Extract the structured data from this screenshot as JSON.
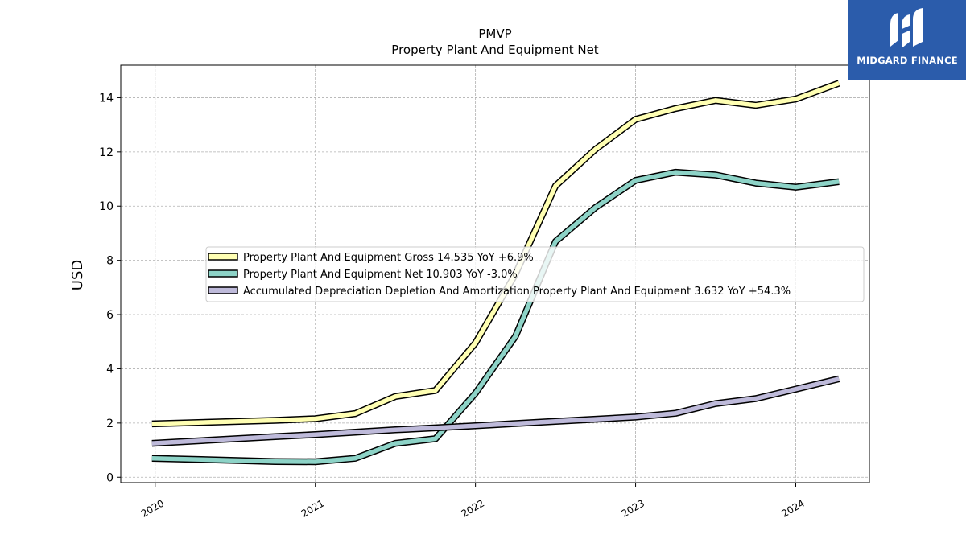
{
  "chart_data": {
    "type": "line",
    "title": "PMVP",
    "subtitle": "Property Plant And Equipment Net",
    "ylabel": "USD",
    "xlabel": "",
    "ylim": [
      -0.2,
      15.2
    ],
    "xlim": [
      2019.785,
      2024.46
    ],
    "grid": true,
    "legend_position": "center-left",
    "x_ticks": [
      2020,
      2021,
      2022,
      2023,
      2024
    ],
    "x_tick_labels": [
      "2020",
      "2021",
      "2022",
      "2023",
      "2024"
    ],
    "y_ticks": [
      0,
      2,
      4,
      6,
      8,
      10,
      12,
      14
    ],
    "y_tick_labels": [
      "0",
      "2",
      "4",
      "6",
      "8",
      "10",
      "12",
      "14"
    ],
    "x": [
      2019.98,
      2020.75,
      2021.0,
      2021.25,
      2021.5,
      2021.75,
      2022.0,
      2022.25,
      2022.5,
      2022.75,
      2023.0,
      2023.25,
      2023.5,
      2023.75,
      2024.0,
      2024.27
    ],
    "series": [
      {
        "name": "Property Plant And Equipment Gross",
        "legend_label": "Property Plant And Equipment Gross  14.535 YoY +6.9%",
        "color": "#ffffb3",
        "values": [
          1.97,
          2.1,
          2.16,
          2.35,
          2.98,
          3.2,
          4.95,
          7.5,
          10.75,
          12.1,
          13.2,
          13.6,
          13.9,
          13.72,
          13.95,
          14.535
        ]
      },
      {
        "name": "Property Plant And Equipment Net",
        "legend_label": "Property Plant And Equipment Net  10.903 YoY -3.0%",
        "color": "#8dd3c7",
        "values": [
          0.7,
          0.58,
          0.57,
          0.7,
          1.25,
          1.42,
          3.1,
          5.2,
          8.7,
          9.95,
          10.95,
          11.25,
          11.15,
          10.85,
          10.7,
          10.903
        ]
      },
      {
        "name": "Accumulated Depreciation Depletion And Amortization Property Plant And Equipment",
        "legend_label": "Accumulated Depreciation Depletion And Amortization Property Plant And Equipment  3.632 YoY +54.3%",
        "color": "#bebada",
        "values": [
          1.25,
          1.5,
          1.57,
          1.66,
          1.75,
          1.82,
          1.9,
          1.98,
          2.06,
          2.14,
          2.22,
          2.36,
          2.72,
          2.9,
          3.25,
          3.632
        ]
      }
    ]
  },
  "logo": {
    "brand_text": "MIDGARD FINANCE",
    "background": "#2b5cab",
    "icon": "midgard-m-logo-icon"
  }
}
